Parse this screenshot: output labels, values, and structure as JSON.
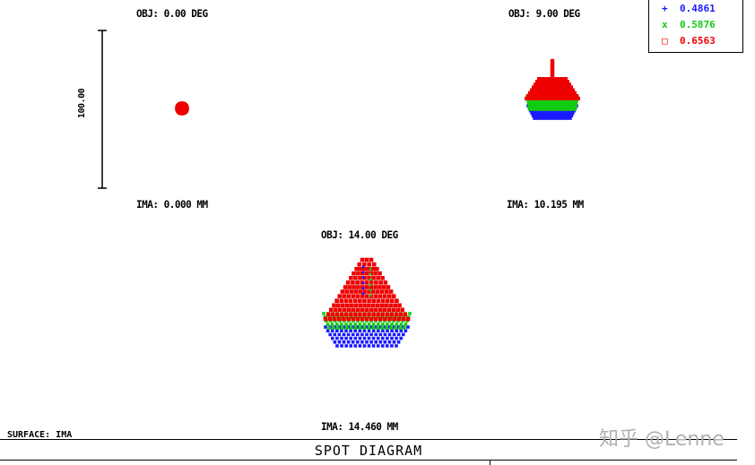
{
  "legend": [
    {
      "marker": "+",
      "wavelength": "0.4861",
      "color": "#1a1aff"
    },
    {
      "marker": "x",
      "wavelength": "0.5876",
      "color": "#11cc11"
    },
    {
      "marker": "□",
      "wavelength": "0.6563",
      "color": "#ee0000"
    }
  ],
  "fields": [
    {
      "obj": "OBJ: 0.00 DEG",
      "ima": "IMA: 0.000 MM"
    },
    {
      "obj": "OBJ: 9.00 DEG",
      "ima": "IMA: 10.195 MM"
    },
    {
      "obj": "OBJ: 14.00 DEG",
      "ima": "IMA: 14.460 MM"
    }
  ],
  "scale_bar": {
    "label": "100.00"
  },
  "surface": "SURFACE: IMA",
  "title": "SPOT DIAGRAM",
  "watermark": "知乎 @Lenne",
  "colors": {
    "blue": "#1a1aff",
    "green": "#11cc11",
    "red": "#ee0000"
  }
}
